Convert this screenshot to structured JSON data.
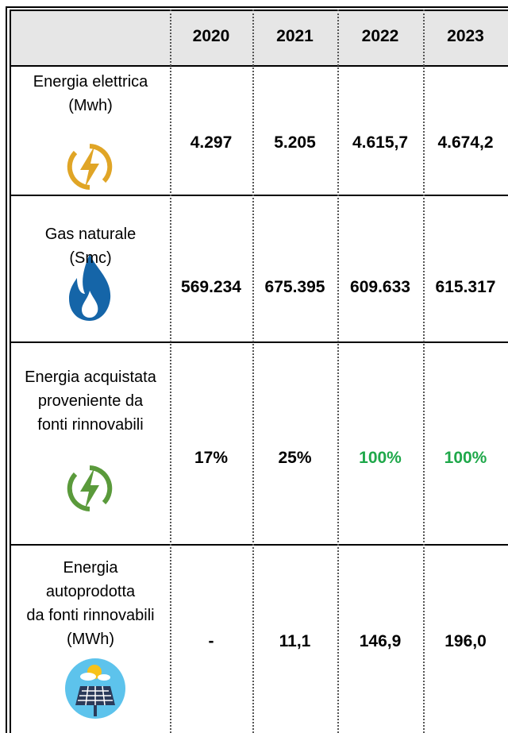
{
  "table": {
    "header": [
      "2020",
      "2021",
      "2022",
      "2023"
    ],
    "rows": [
      {
        "label": [
          "Energia elettrica",
          "(Mwh)"
        ],
        "values": [
          "4.297",
          "5.205",
          "4.615,7",
          "4.674,2"
        ],
        "colors": [
          "#000000",
          "#000000",
          "#000000",
          "#000000"
        ]
      },
      {
        "label": [
          "Gas naturale",
          "(Smc)"
        ],
        "values": [
          "569.234",
          "675.395",
          "609.633",
          "615.317"
        ],
        "colors": [
          "#000000",
          "#000000",
          "#000000",
          "#000000"
        ]
      },
      {
        "label": [
          "Energia acquistata",
          "proveniente da",
          "fonti rinnovabili"
        ],
        "values": [
          "17%",
          "25%",
          "100%",
          "100%"
        ],
        "colors": [
          "#000000",
          "#000000",
          "#1fa84a",
          "#1fa84a"
        ]
      },
      {
        "label": [
          "Energia",
          "autoprodotta",
          "da fonti rinnovabili",
          "(MWh)"
        ],
        "values": [
          "-",
          "11,1",
          "146,9",
          "196,0"
        ],
        "colors": [
          "#000000",
          "#000000",
          "#000000",
          "#000000"
        ]
      }
    ]
  }
}
